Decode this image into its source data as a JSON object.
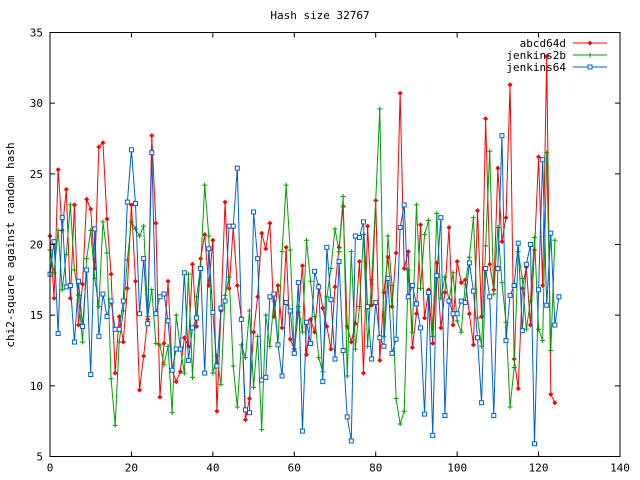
{
  "chart_data": {
    "type": "line",
    "title": "Hash size 32767",
    "xlabel": "",
    "ylabel": "chi2-square against random hash",
    "xlim": [
      0,
      140
    ],
    "ylim": [
      5,
      35
    ],
    "xticks": [
      0,
      20,
      40,
      60,
      80,
      100,
      120,
      140
    ],
    "yticks": [
      5,
      10,
      15,
      20,
      25,
      30,
      35
    ],
    "legend_position": "top-right",
    "series": [
      {
        "name": "abcd64d",
        "color": "#ff0000",
        "marker": "diamond",
        "x_start": 0,
        "values": [
          20.6,
          16.2,
          25.3,
          21.0,
          23.9,
          16.2,
          22.8,
          14.3,
          17.2,
          23.2,
          22.5,
          18.3,
          26.9,
          27.2,
          21.8,
          17.9,
          10.9,
          14.9,
          13.1,
          16.9,
          22.8,
          17.4,
          9.7,
          12.1,
          14.7,
          27.7,
          21.5,
          9.2,
          13.0,
          17.4,
          11.1,
          10.3,
          11.0,
          13.4,
          12.8,
          18.6,
          14.2,
          19.0,
          20.7,
          17.1,
          20.3,
          8.2,
          15.3,
          23.0,
          16.9,
          21.2,
          17.1,
          14.8,
          7.6,
          9.1,
          13.8,
          16.3,
          20.8,
          19.7,
          21.5,
          14.9,
          17.1,
          14.1,
          19.8,
          13.3,
          12.6,
          15.2,
          18.5,
          12.2,
          14.7,
          13.8,
          17.1,
          15.5,
          14.2,
          12.6,
          17.0,
          19.8,
          22.7,
          14.2,
          13.1,
          14.4,
          18.8,
          10.9,
          21.3,
          15.7,
          23.1,
          11.8,
          16.6,
          19.1,
          15.6,
          19.4,
          30.7,
          18.3,
          19.5,
          12.7,
          15.1,
          21.4,
          14.8,
          16.8,
          13.0,
          18.7,
          14.1,
          16.6,
          21.2,
          14.3,
          18.8,
          17.3,
          17.5,
          15.1,
          12.9,
          22.4,
          14.9,
          28.9,
          18.6,
          16.8,
          25.4,
          20.2,
          21.9,
          31.3,
          11.9,
          9.8,
          16.9,
          18.4,
          14.3,
          19.6,
          26.2,
          17.1,
          33.3,
          9.4,
          8.8
        ]
      },
      {
        "name": "jenkins2b",
        "color": "#00a000",
        "marker": "plus",
        "x_start": 0,
        "values": [
          19.6,
          18.0,
          21.0,
          16.8,
          19.3,
          22.8,
          18.2,
          16.4,
          13.1,
          19.0,
          21.0,
          17.6,
          15.6,
          21.6,
          19.4,
          10.5,
          7.2,
          13.1,
          15.3,
          18.9,
          21.6,
          21.1,
          20.6,
          21.3,
          14.9,
          16.8,
          13.0,
          12.9,
          11.5,
          12.8,
          8.1,
          15.0,
          12.7,
          10.9,
          17.9,
          10.6,
          16.3,
          18.4,
          24.2,
          20.6,
          10.9,
          12.1,
          10.1,
          16.4,
          17.7,
          11.4,
          8.5,
          12.9,
          12.0,
          15.3,
          9.9,
          13.5,
          6.9,
          15.0,
          12.8,
          16.0,
          12.9,
          19.5,
          24.2,
          19.6,
          12.3,
          15.6,
          13.8,
          20.3,
          17.4,
          14.9,
          12.0,
          11.0,
          16.3,
          18.3,
          21.1,
          19.5,
          23.4,
          10.7,
          19.5,
          12.6,
          15.6,
          20.7,
          12.8,
          17.5,
          23.1,
          29.6,
          13.5,
          20.6,
          17.1,
          9.1,
          7.3,
          8.2,
          18.2,
          13.8,
          22.8,
          16.9,
          20.7,
          21.7,
          13.5,
          22.2,
          16.2,
          17.7,
          16.0,
          18.0,
          14.6,
          13.8,
          17.2,
          19.1,
          21.9,
          14.8,
          12.8,
          19.9,
          26.6,
          16.5,
          21.2,
          17.3,
          14.5,
          8.5,
          11.3,
          19.5,
          17.6,
          14.0,
          16.0,
          20.5,
          14.0,
          13.2,
          26.5,
          12.5,
          20.3
        ]
      },
      {
        "name": "jenkins64",
        "color": "#0060d0",
        "marker": "square",
        "x_start": 0,
        "values": [
          17.9,
          20.2,
          13.7,
          21.9,
          17.0,
          17.1,
          13.1,
          17.4,
          14.2,
          18.2,
          10.8,
          21.1,
          13.5,
          16.5,
          14.9,
          16.0,
          14.0,
          14.0,
          16.0,
          23.0,
          26.7,
          22.9,
          15.1,
          19.0,
          14.4,
          26.5,
          15.1,
          16.3,
          16.5,
          14.6,
          11.1,
          12.6,
          12.6,
          18.0,
          11.8,
          14.1,
          14.8,
          18.3,
          10.9,
          19.7,
          15.2,
          11.4,
          15.5,
          16.0,
          21.3,
          21.3,
          25.4,
          14.7,
          8.3,
          8.1,
          22.3,
          19.0,
          10.4,
          10.6,
          16.3,
          16.5,
          12.9,
          10.7,
          15.9,
          15.3,
          12.3,
          17.3,
          6.8,
          14.5,
          13.0,
          18.1,
          17.0,
          10.3,
          19.8,
          16.1,
          11.9,
          18.8,
          12.5,
          7.8,
          6.1,
          20.6,
          20.5,
          21.6,
          15.6,
          11.9,
          15.9,
          13.4,
          12.8,
          17.6,
          12.3,
          13.3,
          21.2,
          22.8,
          16.3,
          17.1,
          15.8,
          14.1,
          8.0,
          16.6,
          6.5,
          17.8,
          21.9,
          7.9,
          16.0,
          15.1,
          15.1,
          16.0,
          15.9,
          18.7,
          16.7,
          13.4,
          8.8,
          18.3,
          16.3,
          7.9,
          18.3,
          27.7,
          13.2,
          16.4,
          17.1,
          20.1,
          13.9,
          18.6,
          20.0,
          5.9,
          16.8,
          26.0,
          15.7,
          20.8,
          14.3,
          16.3
        ]
      }
    ]
  }
}
